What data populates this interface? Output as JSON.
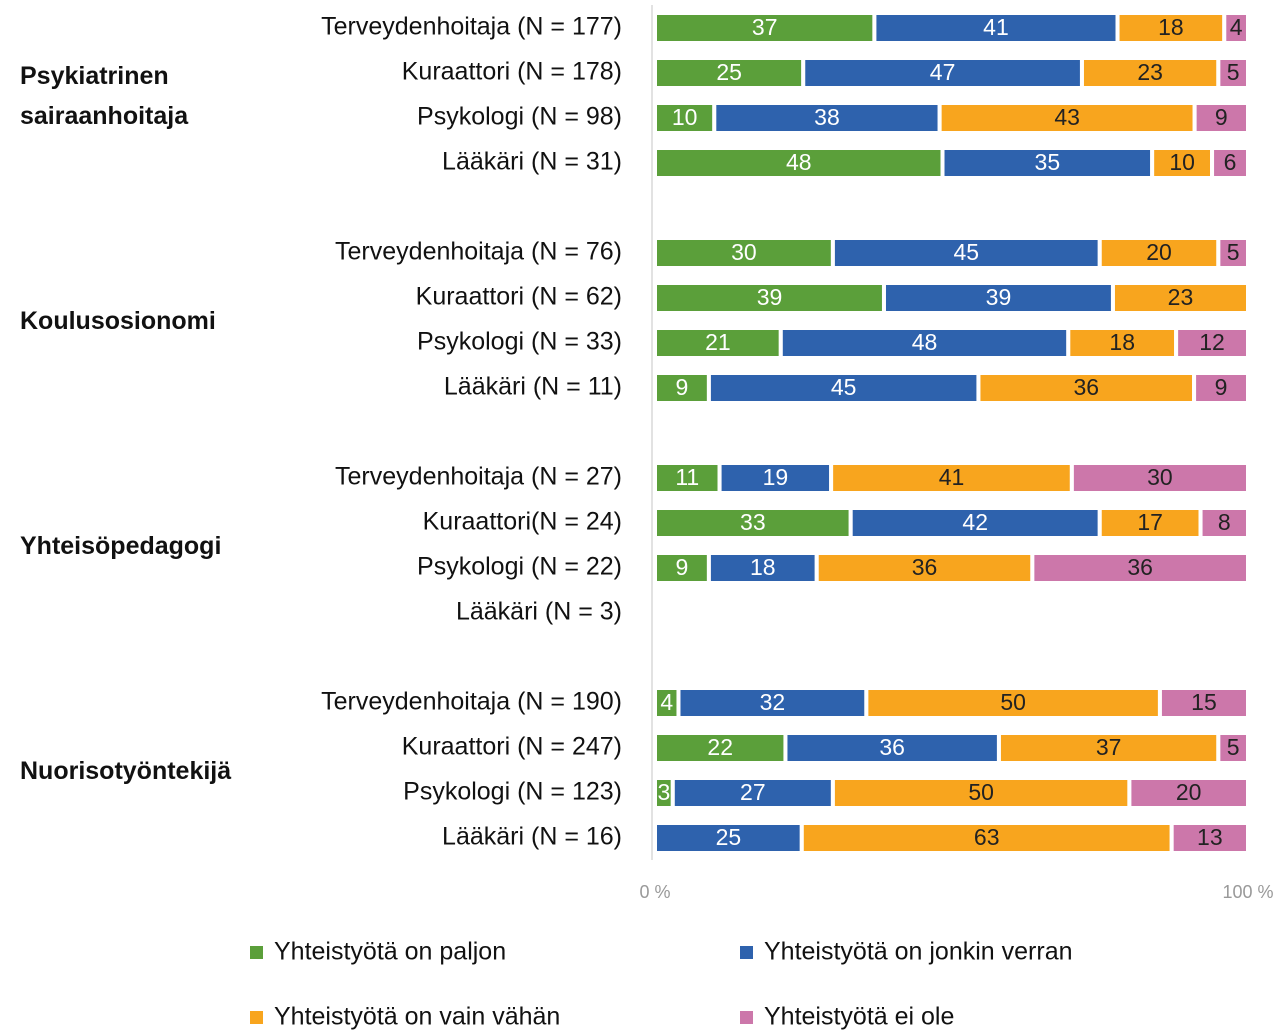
{
  "chart_data": {
    "type": "stacked-bar-100",
    "groups": [
      {
        "name": "Psykiatrinen sairaanhoitaja",
        "rows": [
          0,
          1,
          2,
          3
        ]
      },
      {
        "name": "Koulusosionomi",
        "rows": [
          4,
          5,
          6,
          7
        ]
      },
      {
        "name": "Yhteisöpedagogi",
        "rows": [
          8,
          9,
          10,
          11
        ]
      },
      {
        "name": "Nuorisotyöntekijä",
        "rows": [
          12,
          13,
          14,
          15
        ]
      }
    ],
    "categories": [
      "Terveydenhoitaja (N = 177)",
      "Kuraattori (N = 178)",
      "Psykologi (N = 98)",
      "Lääkäri (N = 31)",
      "Terveydenhoitaja (N = 76)",
      "Kuraattori (N = 62)",
      "Psykologi (N = 33)",
      "Lääkäri (N = 11)",
      "Terveydenhoitaja (N = 27)",
      "Kuraattori(N = 24)",
      "Psykologi (N = 22)",
      "Lääkäri (N = 3)",
      "Terveydenhoitaja (N = 190)",
      "Kuraattori (N = 247)",
      "Psykologi (N = 123)",
      "Lääkäri (N = 16)"
    ],
    "series": [
      {
        "name": "Yhteistyötä on paljon",
        "color": "#5b9f3a",
        "values": [
          37,
          25,
          10,
          48,
          30,
          39,
          21,
          9,
          11,
          33,
          9,
          null,
          4,
          22,
          3,
          null
        ]
      },
      {
        "name": "Yhteistyötä on jonkin verran",
        "color": "#2e62ad",
        "values": [
          41,
          47,
          38,
          35,
          45,
          39,
          48,
          45,
          19,
          42,
          18,
          null,
          32,
          36,
          27,
          25
        ]
      },
      {
        "name": "Yhteistyötä on vain vähän",
        "color": "#f8a51e",
        "values": [
          18,
          23,
          43,
          10,
          20,
          23,
          18,
          36,
          41,
          17,
          36,
          null,
          50,
          37,
          50,
          63
        ]
      },
      {
        "name": "Yhteistyötä ei ole",
        "color": "#cc77aa",
        "values": [
          4,
          5,
          9,
          6,
          5,
          null,
          12,
          9,
          30,
          8,
          36,
          null,
          15,
          5,
          20,
          13
        ]
      }
    ],
    "xlim": [
      0,
      100
    ],
    "xticks": [
      {
        "value": 0,
        "label": "0 %"
      },
      {
        "value": 100,
        "label": "100 %"
      }
    ]
  }
}
